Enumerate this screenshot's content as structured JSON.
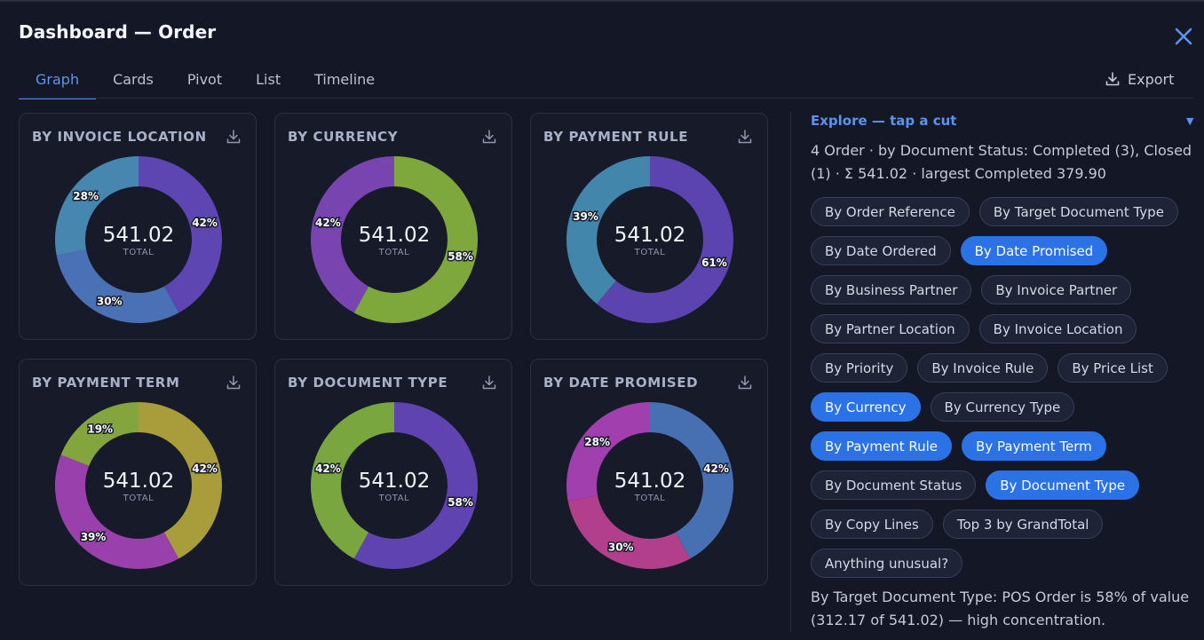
{
  "window": {
    "title": "Dashboard — Order",
    "close_icon": "close-icon"
  },
  "tabs": [
    {
      "label": "Graph",
      "active": true
    },
    {
      "label": "Cards",
      "active": false
    },
    {
      "label": "Pivot",
      "active": false
    },
    {
      "label": "List",
      "active": false
    },
    {
      "label": "Timeline",
      "active": false
    }
  ],
  "toolbar": {
    "export_label": "Export",
    "export_icon": "download-icon"
  },
  "cards": [
    {
      "title": "BY INVOICE LOCATION",
      "total": "541.02",
      "total_label": "TOTAL"
    },
    {
      "title": "BY CURRENCY",
      "total": "541.02",
      "total_label": "TOTAL"
    },
    {
      "title": "BY PAYMENT RULE",
      "total": "541.02",
      "total_label": "TOTAL"
    },
    {
      "title": "BY PAYMENT TERM",
      "total": "541.02",
      "total_label": "TOTAL"
    },
    {
      "title": "BY DOCUMENT TYPE",
      "total": "541.02",
      "total_label": "TOTAL"
    },
    {
      "title": "BY DATE PROMISED",
      "total": "541.02",
      "total_label": "TOTAL"
    }
  ],
  "chart_data": [
    {
      "type": "pie",
      "title": "BY INVOICE LOCATION",
      "values": [
        42,
        30,
        28
      ],
      "labels": [
        "42%",
        "30%",
        "28%"
      ],
      "colors": [
        "#5d46b2",
        "#4a71b6",
        "#4786ae"
      ]
    },
    {
      "type": "pie",
      "title": "BY CURRENCY",
      "values": [
        58,
        42
      ],
      "labels": [
        "58%",
        "42%"
      ],
      "colors": [
        "#7ea83c",
        "#7744b0"
      ]
    },
    {
      "type": "pie",
      "title": "BY PAYMENT RULE",
      "values": [
        61,
        39
      ],
      "labels": [
        "61%",
        "39%"
      ],
      "colors": [
        "#5b44b0",
        "#4286ac"
      ]
    },
    {
      "type": "pie",
      "title": "BY PAYMENT TERM",
      "values": [
        42,
        39,
        19
      ],
      "labels": [
        "42%",
        "39%",
        "19%"
      ],
      "colors": [
        "#a99c3a",
        "#9a40ac",
        "#84a43e"
      ]
    },
    {
      "type": "pie",
      "title": "BY DOCUMENT TYPE",
      "values": [
        58,
        42
      ],
      "labels": [
        "58%",
        "42%"
      ],
      "colors": [
        "#5e43b1",
        "#79a63e"
      ]
    },
    {
      "type": "pie",
      "title": "BY DATE PROMISED",
      "values": [
        42,
        30,
        28
      ],
      "labels": [
        "42%",
        "30%",
        "28%"
      ],
      "colors": [
        "#4670b2",
        "#b23f8c",
        "#a03fad"
      ]
    }
  ],
  "panel": {
    "explore_label": "Explore — tap a cut",
    "summary": "4 Order · by Document Status: Completed (3), Closed (1) · Σ 541.02 · largest Completed 379.90",
    "chips": [
      {
        "label": "By Order Reference",
        "selected": false
      },
      {
        "label": "By Target Document Type",
        "selected": false
      },
      {
        "label": "By Date Ordered",
        "selected": false
      },
      {
        "label": "By Date Promised",
        "selected": true
      },
      {
        "label": "By Business Partner",
        "selected": false
      },
      {
        "label": "By Invoice Partner",
        "selected": false
      },
      {
        "label": "By Partner Location",
        "selected": false
      },
      {
        "label": "By Invoice Location",
        "selected": false
      },
      {
        "label": "By Priority",
        "selected": false
      },
      {
        "label": "By Invoice Rule",
        "selected": false
      },
      {
        "label": "By Price List",
        "selected": false
      },
      {
        "label": "By Currency",
        "selected": true
      },
      {
        "label": "By Currency Type",
        "selected": false
      },
      {
        "label": "By Payment Rule",
        "selected": true
      },
      {
        "label": "By Payment Term",
        "selected": true
      },
      {
        "label": "By Document Status",
        "selected": false
      },
      {
        "label": "By Document Type",
        "selected": true
      },
      {
        "label": "By Copy Lines",
        "selected": false
      },
      {
        "label": "Top 3 by GrandTotal",
        "selected": false
      },
      {
        "label": "Anything unusual?",
        "selected": false
      }
    ],
    "insight": "By Target Document Type: POS Order is 58% of value (312.17 of 541.02) — high concentration."
  }
}
